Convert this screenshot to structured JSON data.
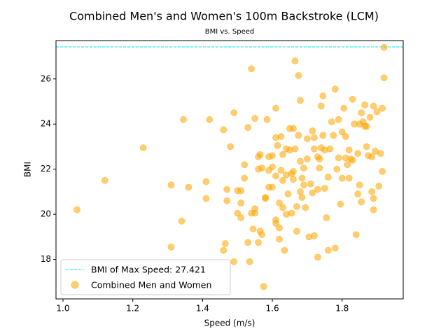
{
  "chart_data": {
    "type": "scatter",
    "title": "Combined Men's and Women's 100m Backstroke (LCM)",
    "subtitle": "BMI vs. Speed",
    "xlabel": "Speed (m/s)",
    "ylabel": "BMI",
    "xlim": [
      0.98,
      1.975
    ],
    "ylim": [
      16.25,
      27.7
    ],
    "xticks": [
      1.0,
      1.2,
      1.4,
      1.6,
      1.8
    ],
    "xtick_labels": [
      "1.0",
      "1.2",
      "1.4",
      "1.6",
      "1.8"
    ],
    "yticks": [
      18,
      20,
      22,
      24,
      26
    ],
    "ytick_labels": [
      "18",
      "20",
      "22",
      "24",
      "26"
    ],
    "grid": false,
    "legend_position": "lower-left",
    "reference_line": {
      "label": "BMI of Max Speed: 27.421",
      "y": 27.421,
      "style": "dashed",
      "color": "#00e5ee"
    },
    "series": [
      {
        "name": "Combined Men and Women",
        "color": "#ffa500",
        "points": [
          [
            1.04,
            20.2
          ],
          [
            1.12,
            21.5
          ],
          [
            1.23,
            22.95
          ],
          [
            1.31,
            21.3
          ],
          [
            1.31,
            18.55
          ],
          [
            1.34,
            19.7
          ],
          [
            1.345,
            24.2
          ],
          [
            1.36,
            21.2
          ],
          [
            1.42,
            24.2
          ],
          [
            1.41,
            21.45
          ],
          [
            1.41,
            20.7
          ],
          [
            1.46,
            18.4
          ],
          [
            1.46,
            23.75
          ],
          [
            1.465,
            18.7
          ],
          [
            1.47,
            21.1
          ],
          [
            1.47,
            20.6
          ],
          [
            1.48,
            23.0
          ],
          [
            1.49,
            24.5
          ],
          [
            1.49,
            17.9
          ],
          [
            1.5,
            20.05
          ],
          [
            1.5,
            21.05
          ],
          [
            1.51,
            21.05
          ],
          [
            1.51,
            19.85
          ],
          [
            1.51,
            20.5
          ],
          [
            1.52,
            22.2
          ],
          [
            1.52,
            21.6
          ],
          [
            1.53,
            18.75
          ],
          [
            1.53,
            23.85
          ],
          [
            1.535,
            17.9
          ],
          [
            1.54,
            26.45
          ],
          [
            1.54,
            20.05
          ],
          [
            1.545,
            19.35
          ],
          [
            1.55,
            20.25
          ],
          [
            1.55,
            24.25
          ],
          [
            1.55,
            20.05
          ],
          [
            1.56,
            22.55
          ],
          [
            1.56,
            22.0
          ],
          [
            1.56,
            18.75
          ],
          [
            1.565,
            19.25
          ],
          [
            1.565,
            22.65
          ],
          [
            1.57,
            19.1
          ],
          [
            1.57,
            22.05
          ],
          [
            1.575,
            16.8
          ],
          [
            1.58,
            20.7
          ],
          [
            1.58,
            20.75
          ],
          [
            1.585,
            24.2
          ],
          [
            1.59,
            21.95
          ],
          [
            1.59,
            22.55
          ],
          [
            1.59,
            21.2
          ],
          [
            1.6,
            21.2
          ],
          [
            1.6,
            22.1
          ],
          [
            1.6,
            22.6
          ],
          [
            1.61,
            24.7
          ],
          [
            1.61,
            19.75
          ],
          [
            1.61,
            19.6
          ],
          [
            1.61,
            23.4
          ],
          [
            1.61,
            21.7
          ],
          [
            1.615,
            23.05
          ],
          [
            1.62,
            20.5
          ],
          [
            1.62,
            18.9
          ],
          [
            1.62,
            19.4
          ],
          [
            1.625,
            21.95
          ],
          [
            1.625,
            23.45
          ],
          [
            1.63,
            22.65
          ],
          [
            1.63,
            21.5
          ],
          [
            1.63,
            20.3
          ],
          [
            1.635,
            18.4
          ],
          [
            1.64,
            22.9
          ],
          [
            1.64,
            20.0
          ],
          [
            1.64,
            21.75
          ],
          [
            1.645,
            20.9
          ],
          [
            1.65,
            23.8
          ],
          [
            1.65,
            22.85
          ],
          [
            1.655,
            21.8
          ],
          [
            1.655,
            20.05
          ],
          [
            1.66,
            23.8
          ],
          [
            1.66,
            21.9
          ],
          [
            1.66,
            21.55
          ],
          [
            1.665,
            22.9
          ],
          [
            1.665,
            26.8
          ],
          [
            1.67,
            19.25
          ],
          [
            1.67,
            20.35
          ],
          [
            1.675,
            23.5
          ],
          [
            1.675,
            26.15
          ],
          [
            1.68,
            25.05
          ],
          [
            1.68,
            22.35
          ],
          [
            1.68,
            21.0
          ],
          [
            1.685,
            20.75
          ],
          [
            1.685,
            21.6
          ],
          [
            1.69,
            22.05
          ],
          [
            1.69,
            21.3
          ],
          [
            1.695,
            20.3
          ],
          [
            1.7,
            23.35
          ],
          [
            1.7,
            22.45
          ],
          [
            1.705,
            19.0
          ],
          [
            1.71,
            21.35
          ],
          [
            1.715,
            20.95
          ],
          [
            1.715,
            23.7
          ],
          [
            1.72,
            23.4
          ],
          [
            1.72,
            19.05
          ],
          [
            1.72,
            22.9
          ],
          [
            1.73,
            21.1
          ],
          [
            1.73,
            18.1
          ],
          [
            1.73,
            22.55
          ],
          [
            1.735,
            22.45
          ],
          [
            1.735,
            22.05
          ],
          [
            1.74,
            22.95
          ],
          [
            1.74,
            24.8
          ],
          [
            1.745,
            25.25
          ],
          [
            1.745,
            23.5
          ],
          [
            1.75,
            21.15
          ],
          [
            1.75,
            22.85
          ],
          [
            1.755,
            19.85
          ],
          [
            1.76,
            18.4
          ],
          [
            1.76,
            21.65
          ],
          [
            1.765,
            22.9
          ],
          [
            1.77,
            24.1
          ],
          [
            1.775,
            23.5
          ],
          [
            1.78,
            18.5
          ],
          [
            1.78,
            25.55
          ],
          [
            1.785,
            22.0
          ],
          [
            1.79,
            24.2
          ],
          [
            1.79,
            22.5
          ],
          [
            1.795,
            20.45
          ],
          [
            1.8,
            23.65
          ],
          [
            1.8,
            21.6
          ],
          [
            1.805,
            24.7
          ],
          [
            1.81,
            23.45
          ],
          [
            1.81,
            22.5
          ],
          [
            1.815,
            22.2
          ],
          [
            1.82,
            22.85
          ],
          [
            1.82,
            21.6
          ],
          [
            1.825,
            22.45
          ],
          [
            1.83,
            22.4
          ],
          [
            1.83,
            25.1
          ],
          [
            1.835,
            24.0
          ],
          [
            1.84,
            19.1
          ],
          [
            1.845,
            20.9
          ],
          [
            1.845,
            22.7
          ],
          [
            1.85,
            21.3
          ],
          [
            1.85,
            24.0
          ],
          [
            1.855,
            24.5
          ],
          [
            1.855,
            20.55
          ],
          [
            1.86,
            24.1
          ],
          [
            1.865,
            24.85
          ],
          [
            1.865,
            23.9
          ],
          [
            1.87,
            23.0
          ],
          [
            1.87,
            23.9
          ],
          [
            1.875,
            22.6
          ],
          [
            1.88,
            24.3
          ],
          [
            1.885,
            21.0
          ],
          [
            1.885,
            22.55
          ],
          [
            1.89,
            24.8
          ],
          [
            1.89,
            20.2
          ],
          [
            1.89,
            20.7
          ],
          [
            1.895,
            22.8
          ],
          [
            1.9,
            24.55
          ],
          [
            1.905,
            21.25
          ],
          [
            1.91,
            22.7
          ],
          [
            1.915,
            21.9
          ],
          [
            1.915,
            24.7
          ],
          [
            1.92,
            26.05
          ],
          [
            1.92,
            27.4
          ]
        ]
      }
    ]
  }
}
